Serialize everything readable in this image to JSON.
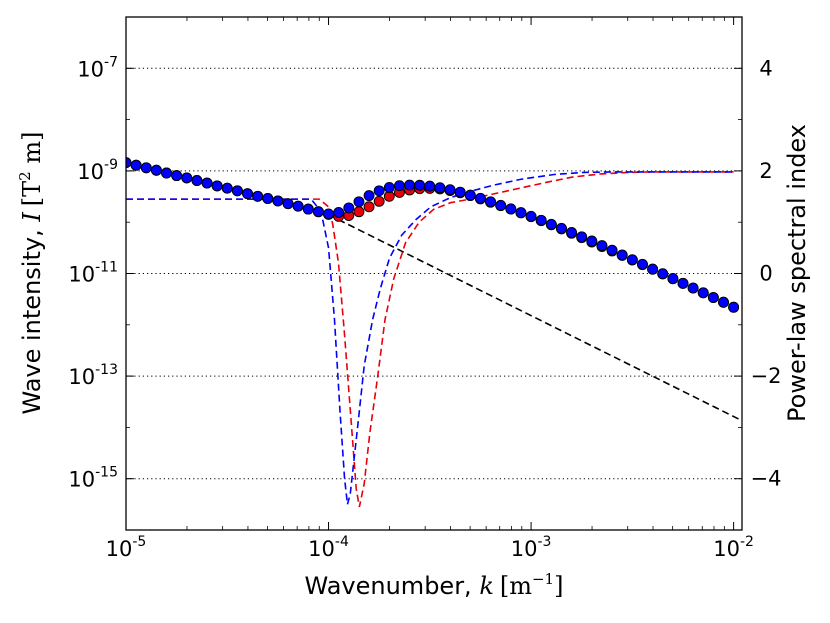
{
  "chart_data": {
    "type": "line",
    "x_axis": {
      "label_prefix": "Wavenumber, ",
      "label_var": "k",
      "label_units": "[m",
      "label_units_sup": "−1",
      "label_units_close": "]",
      "scale": "log",
      "range": [
        1e-05,
        0.011
      ],
      "ticks": [
        {
          "value": 1e-05,
          "base": "10",
          "exp": "-5"
        },
        {
          "value": 0.0001,
          "base": "10",
          "exp": "-4"
        },
        {
          "value": 0.001,
          "base": "10",
          "exp": "-3"
        },
        {
          "value": 0.01,
          "base": "10",
          "exp": "-2"
        }
      ]
    },
    "y_left": {
      "label_prefix": "Wave intensity, ",
      "label_var": "I",
      "label_units": "[T",
      "label_units_sup": "2",
      "label_units_close": " m]",
      "scale": "log",
      "range": [
        1e-16,
        1e-06
      ],
      "ticks": [
        {
          "value": 1e-07,
          "base": "10",
          "exp": "-7"
        },
        {
          "value": 1e-09,
          "base": "10",
          "exp": "-9"
        },
        {
          "value": 1e-11,
          "base": "10",
          "exp": "-11"
        },
        {
          "value": 1e-13,
          "base": "10",
          "exp": "-13"
        },
        {
          "value": 1e-15,
          "base": "10",
          "exp": "-15"
        }
      ]
    },
    "y_right": {
      "label": "Power-law spectral index",
      "scale": "linear",
      "range": [
        -5,
        5
      ],
      "ticks": [
        {
          "value": 4,
          "label": "4"
        },
        {
          "value": 2,
          "label": "2"
        },
        {
          "value": 0,
          "label": "0"
        },
        {
          "value": -2,
          "label": "−2"
        },
        {
          "value": -4,
          "label": "−4"
        }
      ],
      "grid": true
    },
    "series": [
      {
        "name": "wave intensity (red markers)",
        "axis": "left",
        "color": "#e8000b",
        "style": "markers",
        "x": [
          1e-05,
          1.122e-05,
          1.259e-05,
          1.413e-05,
          1.585e-05,
          1.778e-05,
          1.995e-05,
          2.239e-05,
          2.512e-05,
          2.818e-05,
          3.162e-05,
          3.548e-05,
          3.981e-05,
          4.467e-05,
          5.012e-05,
          5.623e-05,
          6.31e-05,
          7.079e-05,
          7.943e-05,
          8.913e-05,
          0.0001,
          0.0001122,
          0.0001259,
          0.0001413,
          0.0001585,
          0.0001778,
          0.0001995,
          0.0002239,
          0.0002512,
          0.0002818,
          0.0003162,
          0.0003548,
          0.0003981,
          0.0004467,
          0.0005012,
          0.0005623,
          0.000631,
          0.0007079,
          0.0007943,
          0.0008913,
          0.001,
          0.001122,
          0.001259,
          0.001413,
          0.001585,
          0.001778,
          0.001995,
          0.002239,
          0.002512,
          0.002818,
          0.003162,
          0.003548,
          0.003981,
          0.004467,
          0.005012,
          0.005623,
          0.00631,
          0.007079,
          0.007943,
          0.008913,
          0.01
        ],
        "y": [
          1.45e-09,
          1.29e-09,
          1.15e-09,
          1.03e-09,
          9.1e-10,
          8.1e-10,
          7.3e-10,
          6.5e-10,
          5.8e-10,
          5.1e-10,
          4.6e-10,
          4.1e-10,
          3.6e-10,
          3.2e-10,
          2.9e-10,
          2.6e-10,
          2.3e-10,
          2.05e-10,
          1.8e-10,
          1.6e-10,
          1.42e-10,
          1.3e-10,
          1.35e-10,
          1.6e-10,
          2e-10,
          2.55e-10,
          3.2e-10,
          3.8e-10,
          4.25e-10,
          4.5e-10,
          4.55e-10,
          4.45e-10,
          4.15e-10,
          3.75e-10,
          3.3e-10,
          2.85e-10,
          2.45e-10,
          2.1e-10,
          1.8e-10,
          1.52e-10,
          1.28e-10,
          1.07e-10,
          8.9e-11,
          7.4e-11,
          6.1e-11,
          5e-11,
          4.1e-11,
          3.35e-11,
          2.75e-11,
          2.25e-11,
          1.83e-11,
          1.49e-11,
          1.21e-11,
          9.8e-12,
          7.9e-12,
          6.4e-12,
          5.2e-12,
          4.2e-12,
          3.4e-12,
          2.75e-12,
          2.2e-12
        ]
      },
      {
        "name": "wave intensity (blue markers)",
        "axis": "left",
        "color": "#0000ff",
        "style": "markers",
        "x": [
          1e-05,
          1.122e-05,
          1.259e-05,
          1.413e-05,
          1.585e-05,
          1.778e-05,
          1.995e-05,
          2.239e-05,
          2.512e-05,
          2.818e-05,
          3.162e-05,
          3.548e-05,
          3.981e-05,
          4.467e-05,
          5.012e-05,
          5.623e-05,
          6.31e-05,
          7.079e-05,
          7.943e-05,
          8.913e-05,
          0.0001,
          0.0001122,
          0.0001259,
          0.0001413,
          0.0001585,
          0.0001778,
          0.0001995,
          0.0002239,
          0.0002512,
          0.0002818,
          0.0003162,
          0.0003548,
          0.0003981,
          0.0004467,
          0.0005012,
          0.0005623,
          0.000631,
          0.0007079,
          0.0007943,
          0.0008913,
          0.001,
          0.001122,
          0.001259,
          0.001413,
          0.001585,
          0.001778,
          0.001995,
          0.002239,
          0.002512,
          0.002818,
          0.003162,
          0.003548,
          0.003981,
          0.004467,
          0.005012,
          0.005623,
          0.00631,
          0.007079,
          0.007943,
          0.008913,
          0.01
        ],
        "y": [
          1.45e-09,
          1.29e-09,
          1.15e-09,
          1.03e-09,
          9.1e-10,
          8.1e-10,
          7.3e-10,
          6.5e-10,
          5.8e-10,
          5.1e-10,
          4.6e-10,
          4.1e-10,
          3.6e-10,
          3.2e-10,
          2.9e-10,
          2.6e-10,
          2.3e-10,
          2.05e-10,
          1.8e-10,
          1.6e-10,
          1.45e-10,
          1.55e-10,
          1.9e-10,
          2.5e-10,
          3.3e-10,
          4.1e-10,
          4.75e-10,
          5.15e-10,
          5.3e-10,
          5.25e-10,
          5.05e-10,
          4.7e-10,
          4.3e-10,
          3.85e-10,
          3.38e-10,
          2.92e-10,
          2.5e-10,
          2.13e-10,
          1.82e-10,
          1.54e-10,
          1.3e-10,
          1.09e-10,
          9.1e-11,
          7.6e-11,
          6.3e-11,
          5.2e-11,
          4.3e-11,
          3.5e-11,
          2.85e-11,
          2.3e-11,
          1.86e-11,
          1.51e-11,
          1.22e-11,
          9.9e-12,
          8e-12,
          6.45e-12,
          5.2e-12,
          4.2e-12,
          3.4e-12,
          2.75e-12,
          2.2e-12
        ]
      },
      {
        "name": "power-law fit extrapolation",
        "axis": "left",
        "color": "#000000",
        "style": "dashed",
        "x": [
          0.0001,
          0.011
        ],
        "y": [
          1.4e-10,
          1.35e-14
        ]
      },
      {
        "name": "spectral index (red dashed)",
        "axis": "right",
        "color": "#e8000b",
        "style": "dashed",
        "x": [
          1e-05,
          8e-05,
          9e-05,
          0.0001,
          0.000105,
          0.000112,
          0.00012,
          0.00013,
          0.000137,
          0.000142,
          0.00015,
          0.00016,
          0.000175,
          0.00019,
          0.00021,
          0.00024,
          0.00028,
          0.00033,
          0.0004,
          0.0005,
          0.00065,
          0.00085,
          0.0012,
          0.0016,
          0.0022,
          0.003,
          0.004,
          0.006,
          0.01
        ],
        "y": [
          1.45,
          1.45,
          1.45,
          1.3,
          0.95,
          0.2,
          -1.2,
          -3.0,
          -4.2,
          -4.55,
          -4.1,
          -3.1,
          -2.0,
          -0.9,
          -0.1,
          0.6,
          1.0,
          1.25,
          1.38,
          1.45,
          1.55,
          1.65,
          1.78,
          1.88,
          1.94,
          1.97,
          1.98,
          1.98,
          1.98
        ]
      },
      {
        "name": "spectral index (blue dashed)",
        "axis": "right",
        "color": "#0000ff",
        "style": "dashed",
        "x": [
          1e-05,
          8.2e-05,
          8.8e-05,
          9.3e-05,
          0.0001,
          0.000107,
          0.000114,
          0.00012,
          0.000124,
          0.000128,
          0.000133,
          0.00014,
          0.00015,
          0.000165,
          0.00018,
          0.0002,
          0.00023,
          0.00027,
          0.00032,
          0.0004,
          0.0005,
          0.00065,
          0.0009,
          0.0013,
          0.0018,
          0.0025,
          0.0035,
          0.005,
          0.01
        ],
        "y": [
          1.45,
          1.45,
          1.3,
          1.1,
          0.5,
          -0.9,
          -2.7,
          -4.0,
          -4.5,
          -4.3,
          -3.7,
          -2.9,
          -1.8,
          -0.9,
          -0.3,
          0.3,
          0.75,
          1.05,
          1.3,
          1.48,
          1.6,
          1.72,
          1.84,
          1.93,
          1.97,
          1.98,
          1.98,
          1.98,
          1.98
        ]
      }
    ]
  }
}
